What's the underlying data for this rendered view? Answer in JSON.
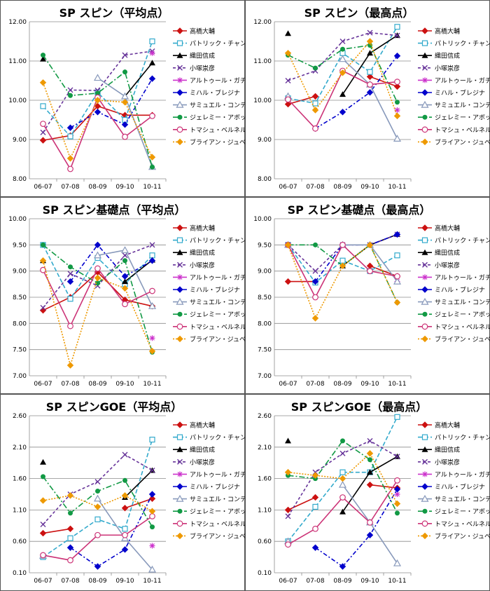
{
  "legend_names": [
    "高橋大輔",
    "パトリック・チャン",
    "織田信成",
    "小塚崇彦",
    "アルトゥール・ガチンスキー",
    "ミハル・ブレジナ",
    "サミュエル・コンテスティ",
    "ジェレミー・アボット",
    "トマシュ・ベルネル",
    "ブライアン・ジュベール"
  ],
  "series_styles": [
    {
      "color": "#cc1111",
      "dash": "",
      "marker": "diamond"
    },
    {
      "color": "#33aacc",
      "dash": "6,3",
      "marker": "square-open"
    },
    {
      "color": "#000000",
      "dash": "",
      "marker": "triangle"
    },
    {
      "color": "#663399",
      "dash": "4,3",
      "marker": "x"
    },
    {
      "color": "#cc33cc",
      "dash": "",
      "marker": "star"
    },
    {
      "color": "#0000cc",
      "dash": "6,3,2,3",
      "marker": "diamond"
    },
    {
      "color": "#8899bb",
      "dash": "",
      "marker": "triangle-open"
    },
    {
      "color": "#119944",
      "dash": "8,3,2,3",
      "marker": "circle"
    },
    {
      "color": "#cc3377",
      "dash": "",
      "marker": "circle-open"
    },
    {
      "color": "#ee9900",
      "dash": "2,2",
      "marker": "diamond"
    }
  ],
  "chart_data": [
    {
      "type": "line",
      "title": "SP スピン（平均点）",
      "categories": [
        "06-07",
        "07-08",
        "08-09",
        "09-10",
        "10-11"
      ],
      "ylim": [
        8.0,
        12.0
      ],
      "yticks": [
        "8.00",
        "9.00",
        "10.00",
        "11.00",
        "12.00"
      ],
      "series": [
        {
          "name": "高橋大輔",
          "values": [
            8.98,
            9.1,
            9.85,
            9.62,
            9.62
          ]
        },
        {
          "name": "パトリック・チャン",
          "values": [
            9.85,
            9.08,
            10.2,
            9.5,
            11.5
          ]
        },
        {
          "name": "織田信成",
          "values": [
            11.05,
            null,
            null,
            10.1,
            10.95
          ]
        },
        {
          "name": "小塚崇彦",
          "values": [
            9.18,
            10.26,
            10.25,
            11.15,
            11.25
          ]
        },
        {
          "name": "アルトゥール・ガチンスキー",
          "values": [
            null,
            null,
            null,
            null,
            11.2
          ]
        },
        {
          "name": "ミハル・ブレジナ",
          "values": [
            null,
            9.3,
            9.7,
            9.38,
            10.55
          ]
        },
        {
          "name": "サミュエル・コンテスティ",
          "values": [
            null,
            null,
            10.57,
            10.1,
            8.3
          ]
        },
        {
          "name": "ジェレミー・アボット",
          "values": [
            11.15,
            10.12,
            10.18,
            10.72,
            8.3
          ]
        },
        {
          "name": "トマシュ・ベルネル",
          "values": [
            9.4,
            8.25,
            10.07,
            9.07,
            9.6
          ]
        },
        {
          "name": "ブライアン・ジュベール",
          "values": [
            10.45,
            8.52,
            10.0,
            9.95,
            8.55
          ]
        }
      ]
    },
    {
      "type": "line",
      "title": "SP スピン（最高点）",
      "categories": [
        "06-07",
        "07-08",
        "08-09",
        "09-10",
        "10-11"
      ],
      "ylim": [
        8.0,
        12.0
      ],
      "yticks": [
        "8.00",
        "9.00",
        "10.00",
        "11.00",
        "12.00"
      ],
      "series": [
        {
          "name": "高橋大輔",
          "values": [
            9.9,
            10.1,
            null,
            10.6,
            10.35
          ]
        },
        {
          "name": "パトリック・チャン",
          "values": [
            10.05,
            9.92,
            11.2,
            10.72,
            11.87
          ]
        },
        {
          "name": "織田信成",
          "values": [
            11.7,
            null,
            10.15,
            11.2,
            11.65
          ]
        },
        {
          "name": "小塚崇彦",
          "values": [
            10.5,
            10.75,
            11.5,
            11.72,
            11.65
          ]
        },
        {
          "name": "アルトゥール・ガチンスキー",
          "values": [
            null,
            null,
            null,
            null,
            9.75
          ]
        },
        {
          "name": "ミハル・ブレジナ",
          "values": [
            null,
            9.28,
            9.7,
            10.2,
            11.13
          ]
        },
        {
          "name": "サミュエル・コンテスティ",
          "values": [
            10.1,
            null,
            11.05,
            10.4,
            9.02
          ]
        },
        {
          "name": "ジェレミー・アボット",
          "values": [
            11.15,
            10.82,
            11.3,
            11.4,
            9.95
          ]
        },
        {
          "name": "トマシュ・ベルネル",
          "values": [
            10.02,
            9.28,
            10.75,
            10.4,
            10.47
          ]
        },
        {
          "name": "ブライアン・ジュベール",
          "values": [
            11.2,
            9.75,
            10.7,
            11.5,
            9.6
          ]
        }
      ]
    },
    {
      "type": "line",
      "title": "SP スピン基礎点（平均点）",
      "categories": [
        "06-07",
        "07-08",
        "08-09",
        "09-10",
        "10-11"
      ],
      "ylim": [
        7.0,
        10.0
      ],
      "yticks": [
        "7.00",
        "7.50",
        "8.00",
        "8.50",
        "9.00",
        "9.50",
        "10.00"
      ],
      "series": [
        {
          "name": "高橋大輔",
          "values": [
            8.25,
            8.5,
            8.98,
            8.45,
            8.33
          ]
        },
        {
          "name": "パトリック・チャン",
          "values": [
            9.5,
            8.47,
            9.25,
            8.75,
            9.3
          ]
        },
        {
          "name": "織田信成",
          "values": [
            9.2,
            null,
            null,
            8.8,
            9.21
          ]
        },
        {
          "name": "小塚崇彦",
          "values": [
            8.3,
            8.95,
            8.72,
            9.3,
            9.5
          ]
        },
        {
          "name": "アルトゥール・ガチンスキー",
          "values": [
            null,
            null,
            null,
            null,
            7.72
          ]
        },
        {
          "name": "ミハル・ブレジナ",
          "values": [
            null,
            8.8,
            9.5,
            8.9,
            9.2
          ]
        },
        {
          "name": "サミュエル・コンテスティ",
          "values": [
            null,
            null,
            9.3,
            9.4,
            8.33
          ]
        },
        {
          "name": "ジェレミー・アボット",
          "values": [
            9.5,
            9.08,
            8.77,
            9.2,
            7.45
          ]
        },
        {
          "name": "トマシュ・ベルネル",
          "values": [
            9.02,
            7.95,
            9.05,
            8.37,
            8.62
          ]
        },
        {
          "name": "ブライアン・ジュベール",
          "values": [
            9.2,
            7.2,
            8.87,
            8.67,
            7.47
          ]
        }
      ]
    },
    {
      "type": "line",
      "title": "SP スピン基礎点（最高点）",
      "categories": [
        "06-07",
        "07-08",
        "08-09",
        "09-10",
        "10-11"
      ],
      "ylim": [
        7.0,
        10.0
      ],
      "yticks": [
        "7.00",
        "7.50",
        "8.00",
        "8.50",
        "9.00",
        "9.50",
        "10.00"
      ],
      "series": [
        {
          "name": "高橋大輔",
          "values": [
            8.8,
            8.8,
            null,
            9.1,
            8.9
          ]
        },
        {
          "name": "パトリック・チャン",
          "values": [
            9.5,
            8.78,
            9.2,
            9.0,
            9.3
          ]
        },
        {
          "name": "織田信成",
          "values": [
            9.5,
            null,
            9.1,
            9.5,
            9.7
          ]
        },
        {
          "name": "小塚崇彦",
          "values": [
            9.5,
            9.0,
            9.5,
            9.5,
            9.7
          ]
        },
        {
          "name": "アルトゥール・ガチンスキー",
          "values": [
            null,
            null,
            null,
            null,
            8.8
          ]
        },
        {
          "name": "ミハル・ブレジナ",
          "values": [
            null,
            8.8,
            9.5,
            9.5,
            9.7
          ]
        },
        {
          "name": "サミュエル・コンテスティ",
          "values": [
            9.5,
            null,
            9.5,
            9.5,
            8.8
          ]
        },
        {
          "name": "ジェレミー・アボット",
          "values": [
            9.5,
            9.5,
            9.1,
            9.5,
            8.4
          ]
        },
        {
          "name": "トマシュ・ベルネル",
          "values": [
            9.5,
            8.5,
            9.5,
            9.0,
            8.9
          ]
        },
        {
          "name": "ブライアン・ジュベール",
          "values": [
            9.5,
            8.1,
            9.1,
            9.5,
            8.4
          ]
        }
      ]
    },
    {
      "type": "line",
      "title": "SP スピンGOE（平均点）",
      "categories": [
        "06-07",
        "07-08",
        "08-09",
        "09-10",
        "10-11"
      ],
      "ylim": [
        0.1,
        2.6
      ],
      "yticks": [
        "0.10",
        "0.60",
        "1.10",
        "1.60",
        "2.10",
        "2.60"
      ],
      "series": [
        {
          "name": "高橋大輔",
          "values": [
            0.73,
            0.8,
            null,
            1.13,
            1.28
          ]
        },
        {
          "name": "パトリック・チャン",
          "values": [
            0.35,
            0.65,
            0.95,
            0.8,
            2.22
          ]
        },
        {
          "name": "織田信成",
          "values": [
            1.86,
            null,
            null,
            1.3,
            1.73
          ]
        },
        {
          "name": "小塚崇彦",
          "values": [
            0.87,
            1.35,
            1.55,
            1.98,
            1.73
          ]
        },
        {
          "name": "アルトゥール・ガチンスキー",
          "values": [
            null,
            null,
            null,
            null,
            0.53
          ]
        },
        {
          "name": "ミハル・ブレジナ",
          "values": [
            null,
            0.5,
            0.2,
            0.47,
            1.35
          ]
        },
        {
          "name": "サミュエル・コンテスティ",
          "values": [
            0.37,
            null,
            1.28,
            0.65,
            0.15
          ]
        },
        {
          "name": "ジェレミー・アボット",
          "values": [
            1.63,
            1.05,
            1.4,
            1.57,
            0.83
          ]
        },
        {
          "name": "トマシュ・ベルネル",
          "values": [
            0.38,
            0.3,
            0.7,
            0.7,
            1.0
          ]
        },
        {
          "name": "ブライアン・ジュベール",
          "values": [
            1.25,
            1.33,
            1.15,
            1.33,
            1.08
          ]
        }
      ]
    },
    {
      "type": "line",
      "title": "SP スピンGOE（最高点）",
      "categories": [
        "06-07",
        "07-08",
        "08-09",
        "09-10",
        "10-11"
      ],
      "ylim": [
        0.1,
        2.6
      ],
      "yticks": [
        "0.10",
        "0.60",
        "1.10",
        "1.60",
        "2.10",
        "2.60"
      ],
      "series": [
        {
          "name": "高橋大輔",
          "values": [
            1.1,
            1.3,
            null,
            1.5,
            1.45
          ]
        },
        {
          "name": "パトリック・チャン",
          "values": [
            0.6,
            1.15,
            1.7,
            1.7,
            2.58
          ]
        },
        {
          "name": "織田信成",
          "values": [
            2.2,
            null,
            1.07,
            1.7,
            1.95
          ]
        },
        {
          "name": "小塚崇彦",
          "values": [
            1.0,
            1.7,
            2.0,
            2.2,
            1.95
          ]
        },
        {
          "name": "アルトゥール・ガチンスキー",
          "values": [
            null,
            null,
            null,
            null,
            1.35
          ]
        },
        {
          "name": "ミハル・ブレジナ",
          "values": [
            null,
            0.5,
            0.2,
            0.7,
            1.43
          ]
        },
        {
          "name": "サミュエル・コンテスティ",
          "values": [
            0.6,
            null,
            1.5,
            0.9,
            0.25
          ]
        },
        {
          "name": "ジェレミー・アボット",
          "values": [
            1.65,
            1.6,
            2.2,
            1.9,
            1.05
          ]
        },
        {
          "name": "トマシュ・ベルネル",
          "values": [
            0.55,
            0.8,
            1.3,
            0.9,
            1.57
          ]
        },
        {
          "name": "ブライアン・ジュベール",
          "values": [
            1.7,
            1.65,
            1.6,
            2.0,
            1.2
          ]
        }
      ]
    }
  ]
}
